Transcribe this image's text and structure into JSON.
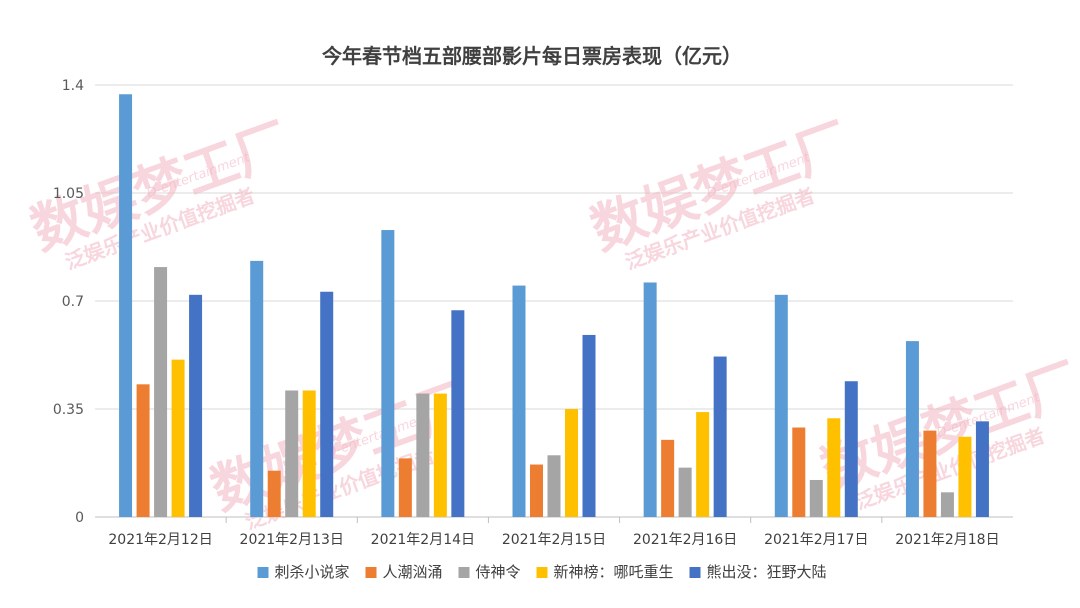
{
  "chart_data": {
    "type": "bar",
    "title": "今年春节档五部腰部影片每日票房表现（亿元）",
    "xlabel": "",
    "ylabel": "",
    "ylim": [
      0,
      1.4
    ],
    "yticks": [
      "0",
      "0.35",
      "0.7",
      "1.05",
      "1.4"
    ],
    "grid": true,
    "legend_position": "bottom",
    "categories": [
      "2021年2月12日",
      "2021年2月13日",
      "2021年2月14日",
      "2021年2月15日",
      "2021年2月16日",
      "2021年2月17日",
      "2021年2月18日"
    ],
    "series": [
      {
        "name": "刺杀小说家",
        "color": "#5b9bd5",
        "values": [
          1.37,
          0.83,
          0.93,
          0.75,
          0.76,
          0.72,
          0.57
        ]
      },
      {
        "name": "人潮汹涌",
        "color": "#ed7d31",
        "values": [
          0.43,
          0.15,
          0.19,
          0.17,
          0.25,
          0.29,
          0.28
        ]
      },
      {
        "name": "侍神令",
        "color": "#a5a5a5",
        "values": [
          0.81,
          0.41,
          0.4,
          0.2,
          0.16,
          0.12,
          0.08
        ]
      },
      {
        "name": "新神榜：哪吒重生",
        "color": "#ffc000",
        "values": [
          0.51,
          0.41,
          0.4,
          0.35,
          0.34,
          0.32,
          0.26
        ]
      },
      {
        "name": "熊出没：狂野大陆",
        "color": "#4472c4",
        "values": [
          0.72,
          0.73,
          0.67,
          0.59,
          0.52,
          0.44,
          0.31
        ]
      }
    ]
  },
  "watermark": {
    "main": "数娱梦工厂",
    "sub": "泛娱乐产业价值挖掘者",
    "en": "D-entertainment"
  }
}
